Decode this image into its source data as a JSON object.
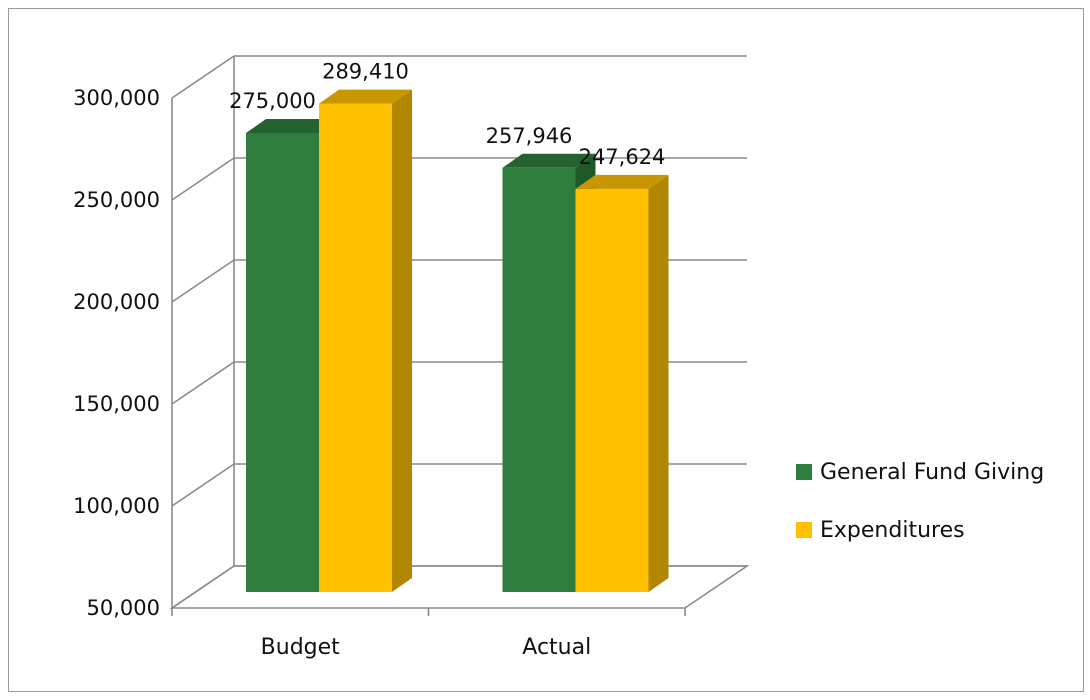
{
  "chart_data": {
    "type": "bar",
    "categories": [
      "Budget",
      "Actual"
    ],
    "series": [
      {
        "name": "General Fund Giving",
        "values": [
          275000,
          257946
        ],
        "color": "#2e7d3e"
      },
      {
        "name": "Expenditures",
        "values": [
          289410,
          247624
        ],
        "color": "#ffc000"
      }
    ],
    "data_labels": [
      [
        "275,000",
        "257,946"
      ],
      [
        "289,410",
        "247,624"
      ]
    ],
    "ylim": [
      50000,
      300000
    ],
    "yticks": [
      50000,
      100000,
      150000,
      200000,
      250000,
      300000
    ],
    "ytick_labels": [
      "50,000",
      "100,000",
      "150,000",
      "200,000",
      "250,000",
      "300,000"
    ],
    "grid": true,
    "legend_position": "right",
    "style": "3d-clustered-column"
  }
}
